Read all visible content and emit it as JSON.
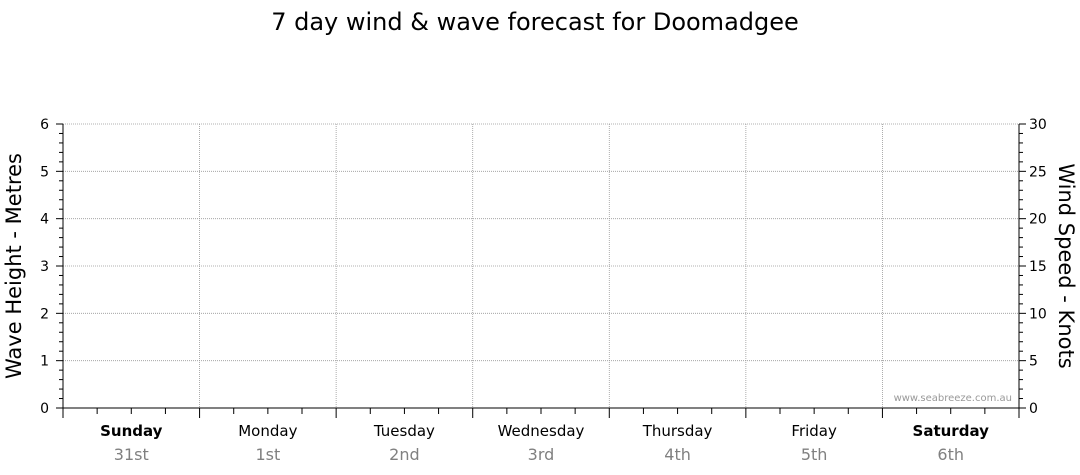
{
  "chart_data": {
    "type": "line",
    "title": "7 day wind & wave forecast for Doomadgee",
    "ylabel": "Wave Height - Metres",
    "y2label": "Wind Speed - Knots",
    "ylim": [
      0,
      6
    ],
    "y2lim": [
      0,
      30
    ],
    "yticks": [
      "0",
      "1",
      "2",
      "3",
      "4",
      "5",
      "6"
    ],
    "y2ticks": [
      "0",
      "5",
      "10",
      "15",
      "20",
      "25",
      "30"
    ],
    "grid": true,
    "days": [
      {
        "name": "Sunday",
        "date": "31st",
        "bold": true
      },
      {
        "name": "Monday",
        "date": "1st",
        "bold": false
      },
      {
        "name": "Tuesday",
        "date": "2nd",
        "bold": false
      },
      {
        "name": "Wednesday",
        "date": "3rd",
        "bold": false
      },
      {
        "name": "Thursday",
        "date": "4th",
        "bold": false
      },
      {
        "name": "Friday",
        "date": "5th",
        "bold": false
      },
      {
        "name": "Saturday",
        "date": "6th",
        "bold": true
      }
    ],
    "series": [],
    "watermark": "www.seabreeze.com.au"
  }
}
